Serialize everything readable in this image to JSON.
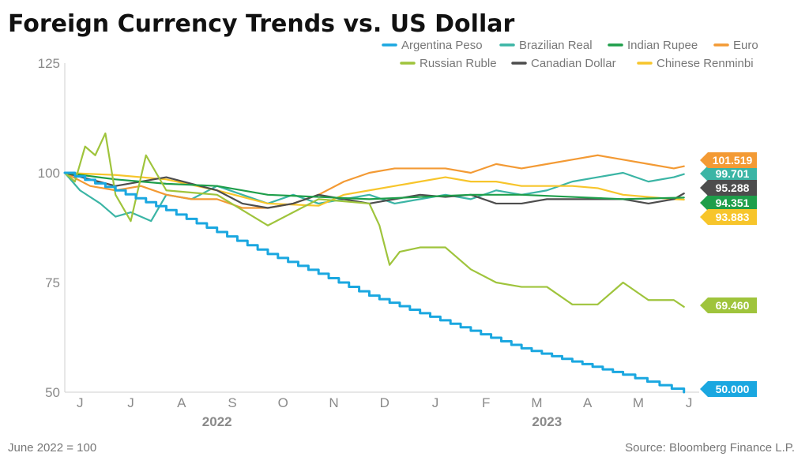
{
  "colors": {
    "argentina": "#1aa7e0",
    "brazil": "#3bb5a5",
    "india": "#1e9e4a",
    "euro": "#f39a34",
    "russia": "#9fc43c",
    "canada": "#4d4d4d",
    "china": "#f7c52b"
  },
  "chart_data": {
    "type": "line",
    "title": "Foreign Currency Trends vs. US Dollar",
    "subtitle_note": "June 2022 = 100",
    "source": "Source: Bloomberg Finance L.P.",
    "xlabel": "",
    "ylabel": "",
    "x_domain": [
      0,
      12.5
    ],
    "ylim": [
      50,
      125
    ],
    "y_ticks": [
      "125",
      "100",
      "75",
      "50"
    ],
    "y_tick_values": [
      125,
      100,
      75,
      50
    ],
    "x_ticks": [
      "J",
      "J",
      "A",
      "S",
      "O",
      "N",
      "D",
      "J",
      "F",
      "M",
      "A",
      "M",
      "J"
    ],
    "year_labels": [
      {
        "label": "2022",
        "x": 3
      },
      {
        "label": "2023",
        "x": 9.5
      }
    ],
    "legend_position": "top-right",
    "series": [
      {
        "key": "argentina",
        "name": "Argentina Peso",
        "end_label": "50.000",
        "end": 50.0,
        "x": [
          0,
          1,
          2,
          3,
          4,
          5,
          6,
          7,
          8,
          9,
          10,
          11,
          12.2
        ],
        "values": [
          100,
          96,
          91.5,
          86.5,
          81.5,
          77,
          72,
          68,
          64,
          60,
          57,
          54,
          50
        ]
      },
      {
        "key": "brazil",
        "name": "Brazilian Real",
        "end_label": "99.701",
        "end": 99.7,
        "x": [
          0,
          0.3,
          0.7,
          1,
          1.3,
          1.7,
          2,
          2.5,
          3,
          3.5,
          4,
          4.5,
          5,
          5.5,
          6,
          6.5,
          7,
          7.5,
          8,
          8.5,
          9,
          9.5,
          10,
          10.5,
          11,
          11.5,
          12,
          12.2
        ],
        "values": [
          100,
          96,
          93,
          90,
          91,
          89,
          95,
          94,
          97,
          95,
          93,
          95,
          93,
          94,
          95,
          93,
          94,
          95,
          94,
          96,
          95,
          96,
          98,
          99,
          100,
          98,
          99,
          99.7
        ]
      },
      {
        "key": "india",
        "name": "Indian Rupee",
        "end_label": "94.351",
        "end": 94.351,
        "x": [
          0,
          1,
          2,
          3,
          4,
          5,
          6,
          7,
          8,
          9,
          10,
          11,
          12.2
        ],
        "values": [
          100,
          98.5,
          97.5,
          97,
          95,
          94.5,
          94,
          94.5,
          95,
          95,
          94.5,
          94,
          94.351
        ]
      },
      {
        "key": "euro",
        "name": "Euro",
        "end_label": "101.519",
        "end": 101.519,
        "x": [
          0,
          0.5,
          1,
          1.5,
          2,
          2.5,
          3,
          3.5,
          4,
          4.5,
          5,
          5.5,
          6,
          6.5,
          7,
          7.5,
          8,
          8.5,
          9,
          9.5,
          10,
          10.5,
          11,
          11.5,
          12,
          12.2
        ],
        "values": [
          100,
          97,
          96,
          97,
          95,
          94,
          94,
          92,
          92,
          93,
          95,
          98,
          100,
          101,
          101,
          101,
          100,
          102,
          101,
          102,
          103,
          104,
          103,
          102,
          101,
          101.5
        ]
      },
      {
        "key": "russia",
        "name": "Russian Ruble",
        "end_label": "69.460",
        "end": 69.46,
        "x": [
          0,
          0.2,
          0.4,
          0.6,
          0.8,
          1,
          1.3,
          1.6,
          2,
          3,
          4,
          5,
          6,
          6.2,
          6.4,
          6.6,
          7,
          7.5,
          8,
          8.5,
          9,
          9.5,
          10,
          10.5,
          11,
          11.5,
          12,
          12.2
        ],
        "values": [
          100,
          98,
          106,
          104,
          109,
          95,
          89,
          104,
          96,
          95,
          88,
          94,
          93,
          88,
          79,
          82,
          83,
          83,
          78,
          75,
          74,
          74,
          70,
          70,
          75,
          71,
          71,
          69.46
        ]
      },
      {
        "key": "canada",
        "name": "Canadian Dollar",
        "end_label": "95.288",
        "end": 95.288,
        "x": [
          0,
          1,
          2,
          3,
          3.5,
          4,
          4.5,
          5,
          5.5,
          6,
          6.5,
          7,
          7.5,
          8,
          8.5,
          9,
          9.5,
          10,
          10.5,
          11,
          11.5,
          12,
          12.2
        ],
        "values": [
          100,
          97,
          99,
          96,
          93,
          92,
          93,
          95,
          94,
          93,
          94,
          95,
          94.5,
          95,
          93,
          93,
          94,
          94,
          94,
          94,
          93,
          94,
          95.3
        ]
      },
      {
        "key": "china",
        "name": "Chinese Renminbi",
        "end_label": "93.883",
        "end": 93.883,
        "x": [
          0,
          1,
          2,
          3,
          4,
          5,
          5.5,
          6,
          6.5,
          7,
          7.5,
          8,
          8.5,
          9,
          9.5,
          10,
          10.5,
          11,
          11.5,
          12,
          12.2
        ],
        "values": [
          100,
          99.5,
          98.5,
          96,
          93,
          92.5,
          95,
          96,
          97,
          98,
          99,
          98,
          98,
          97,
          97,
          97,
          96.5,
          95,
          94.5,
          94,
          93.883
        ]
      }
    ]
  }
}
